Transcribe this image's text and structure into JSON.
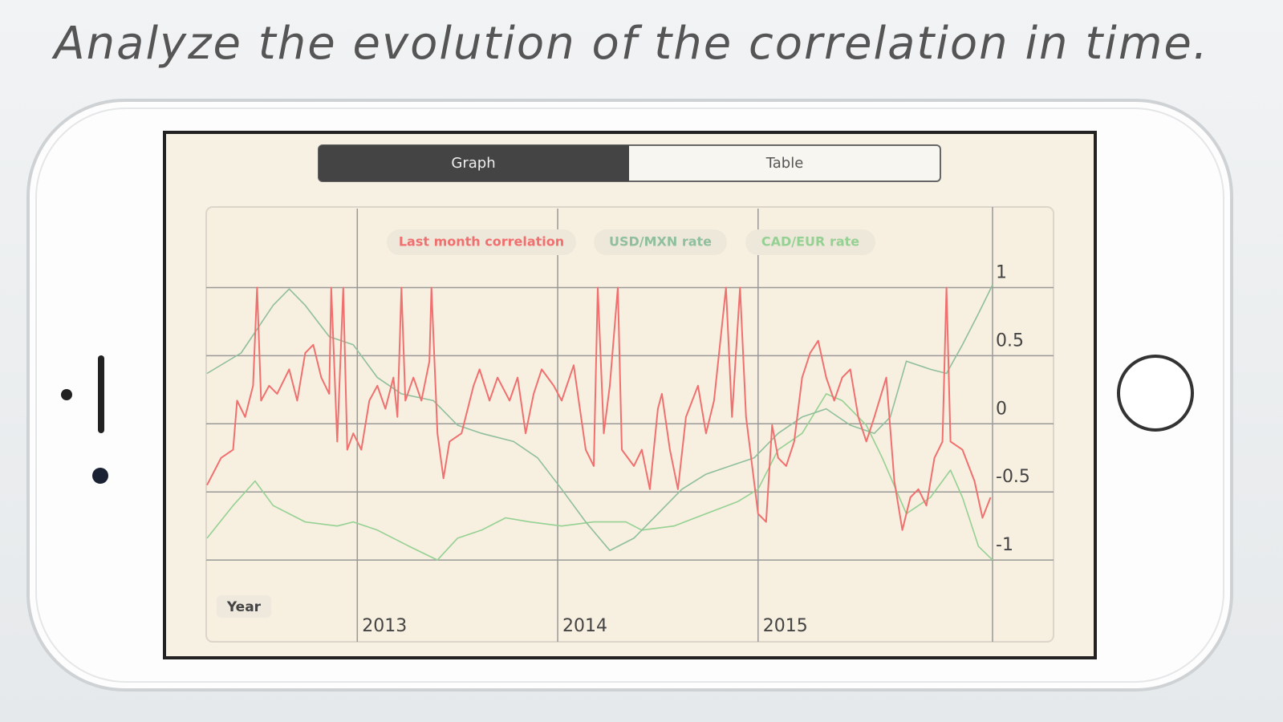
{
  "headline": "Analyze the evolution of the correlation in time.",
  "tabs": [
    "Graph",
    "Table"
  ],
  "chart_data": {
    "type": "line",
    "x_label": "Year",
    "xlim": [
      2012.25,
      2016.17
    ],
    "xticks": [
      2013,
      2014,
      2015
    ],
    "ylim": [
      -1.6,
      1.58
    ],
    "yticks": [
      1,
      0.5,
      0,
      -0.5,
      -1
    ],
    "grid": true,
    "legend": "top",
    "series": [
      {
        "name": "Last month correlation",
        "color": "#f07070",
        "x": [
          2012.25,
          2012.32,
          2012.38,
          2012.4,
          2012.44,
          2012.48,
          2012.5,
          2012.52,
          2012.56,
          2012.6,
          2012.66,
          2012.7,
          2012.74,
          2012.78,
          2012.82,
          2012.86,
          2012.87,
          2012.9,
          2012.93,
          2012.95,
          2012.98,
          2013.02,
          2013.06,
          2013.1,
          2013.14,
          2013.18,
          2013.2,
          2013.22,
          2013.24,
          2013.28,
          2013.32,
          2013.36,
          2013.37,
          2013.4,
          2013.43,
          2013.46,
          2013.52,
          2013.58,
          2013.61,
          2013.66,
          2013.7,
          2013.76,
          2013.8,
          2013.84,
          2013.88,
          2013.92,
          2013.98,
          2014.02,
          2014.08,
          2014.14,
          2014.18,
          2014.2,
          2014.23,
          2014.26,
          2014.3,
          2014.32,
          2014.38,
          2014.42,
          2014.46,
          2014.5,
          2014.52,
          2014.56,
          2014.6,
          2014.64,
          2014.7,
          2014.74,
          2014.78,
          2014.84,
          2014.87,
          2014.91,
          2014.94,
          2015,
          2015.04,
          2015.07,
          2015.1,
          2015.14,
          2015.18,
          2015.22,
          2015.26,
          2015.3,
          2015.34,
          2015.38,
          2015.42,
          2015.46,
          2015.5,
          2015.54,
          2015.58,
          2015.64,
          2015.68,
          2015.72,
          2015.76,
          2015.8,
          2015.84,
          2015.88,
          2015.92,
          2015.94,
          2015.96,
          2016.02,
          2016.08,
          2016.12,
          2016.16
        ],
        "values": [
          -0.45,
          -0.25,
          -0.19,
          0.17,
          0.05,
          0.28,
          1.0,
          0.17,
          0.28,
          0.22,
          0.4,
          0.17,
          0.52,
          0.58,
          0.34,
          0.22,
          1.0,
          -0.13,
          1.0,
          -0.19,
          -0.07,
          -0.19,
          0.17,
          0.28,
          0.11,
          0.34,
          0.05,
          1.0,
          0.17,
          0.34,
          0.17,
          0.46,
          1.0,
          -0.07,
          -0.4,
          -0.13,
          -0.07,
          0.28,
          0.4,
          0.17,
          0.34,
          0.17,
          0.34,
          -0.07,
          0.22,
          0.4,
          0.28,
          0.17,
          0.43,
          -0.19,
          -0.31,
          1.0,
          -0.07,
          0.28,
          1.0,
          -0.19,
          -0.31,
          -0.19,
          -0.48,
          0.11,
          0.22,
          -0.19,
          -0.48,
          0.05,
          0.28,
          -0.07,
          0.17,
          1.0,
          0.05,
          1.0,
          0.05,
          -0.66,
          -0.72,
          -0.01,
          -0.25,
          -0.31,
          -0.13,
          0.34,
          0.52,
          0.61,
          0.34,
          0.17,
          0.34,
          0.4,
          0.05,
          -0.13,
          0.05,
          0.34,
          -0.42,
          -0.78,
          -0.54,
          -0.48,
          -0.6,
          -0.25,
          -0.13,
          1.0,
          -0.13,
          -0.19,
          -0.42,
          -0.69,
          -0.54
        ]
      },
      {
        "name": "USD/MXN rate",
        "color": "#8fbf9c",
        "x": [
          2012.25,
          2012.42,
          2012.58,
          2012.66,
          2012.74,
          2012.86,
          2012.98,
          2013.1,
          2013.22,
          2013.38,
          2013.5,
          2013.62,
          2013.78,
          2013.9,
          2014.02,
          2014.14,
          2014.26,
          2014.38,
          2014.5,
          2014.62,
          2014.74,
          2014.86,
          2014.98,
          2015.1,
          2015.22,
          2015.34,
          2015.46,
          2015.58,
          2015.66,
          2015.74,
          2015.86,
          2015.94,
          2016.02,
          2016.1,
          2016.17
        ],
        "values": [
          0.37,
          0.52,
          0.87,
          0.99,
          0.87,
          0.64,
          0.58,
          0.34,
          0.22,
          0.17,
          -0.01,
          -0.07,
          -0.13,
          -0.25,
          -0.48,
          -0.72,
          -0.93,
          -0.84,
          -0.66,
          -0.48,
          -0.37,
          -0.31,
          -0.25,
          -0.07,
          0.05,
          0.11,
          -0.01,
          -0.07,
          0.05,
          0.46,
          0.4,
          0.37,
          0.58,
          0.81,
          1.02
        ]
      },
      {
        "name": "CAD/EUR rate",
        "color": "#95d193",
        "x": [
          2012.25,
          2012.38,
          2012.49,
          2012.58,
          2012.74,
          2012.9,
          2012.98,
          2013.1,
          2013.26,
          2013.4,
          2013.5,
          2013.62,
          2013.74,
          2013.86,
          2014.02,
          2014.18,
          2014.34,
          2014.42,
          2014.58,
          2014.74,
          2014.9,
          2015,
          2015.1,
          2015.22,
          2015.34,
          2015.42,
          2015.54,
          2015.62,
          2015.74,
          2015.86,
          2015.96,
          2016.02,
          2016.1,
          2016.17
        ],
        "values": [
          -0.84,
          -0.6,
          -0.42,
          -0.6,
          -0.72,
          -0.75,
          -0.72,
          -0.78,
          -0.9,
          -1.0,
          -0.84,
          -0.78,
          -0.69,
          -0.72,
          -0.75,
          -0.72,
          -0.72,
          -0.78,
          -0.75,
          -0.66,
          -0.57,
          -0.48,
          -0.19,
          -0.07,
          0.22,
          0.17,
          -0.01,
          -0.25,
          -0.66,
          -0.54,
          -0.34,
          -0.54,
          -0.9,
          -1.0
        ]
      }
    ]
  }
}
